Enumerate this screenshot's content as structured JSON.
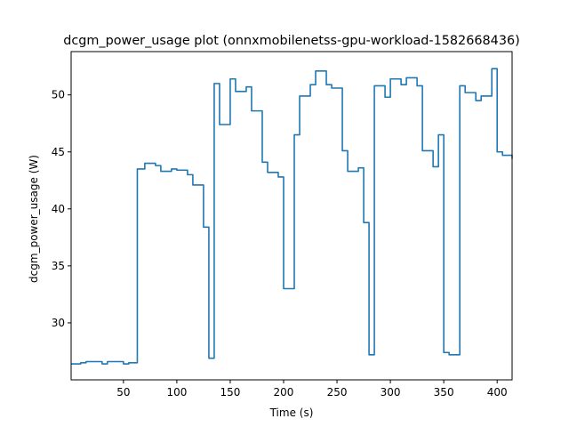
{
  "chart_data": {
    "type": "line",
    "title": "dcgm_power_usage plot (onnxmobilenetss-gpu-workload-1582668436)",
    "xlabel": "Time (s)",
    "ylabel": "dcgm_power_usage (W)",
    "xlim": [
      1,
      414
    ],
    "ylim": [
      25.0,
      53.8
    ],
    "xticks": [
      50,
      100,
      150,
      200,
      250,
      300,
      350,
      400
    ],
    "yticks": [
      30,
      35,
      40,
      45,
      50
    ],
    "grid": false,
    "line_color": "#1f77b4",
    "series": [
      {
        "step": true,
        "x": [
          1,
          5,
          10,
          15,
          20,
          25,
          30,
          35,
          40,
          45,
          50,
          55,
          60,
          63,
          65,
          70,
          75,
          80,
          85,
          90,
          95,
          100,
          105,
          110,
          115,
          120,
          125,
          130,
          133,
          135,
          137,
          140,
          145,
          150,
          155,
          160,
          165,
          170,
          175,
          180,
          185,
          190,
          195,
          200,
          205,
          210,
          215,
          220,
          225,
          230,
          235,
          240,
          245,
          250,
          255,
          260,
          265,
          270,
          275,
          280,
          285,
          290,
          295,
          300,
          305,
          310,
          315,
          320,
          325,
          330,
          335,
          340,
          345,
          350,
          355,
          360,
          365,
          370,
          375,
          380,
          385,
          390,
          395,
          400,
          405,
          414
        ],
        "y": [
          26.4,
          26.4,
          26.5,
          26.6,
          26.6,
          26.6,
          26.4,
          26.6,
          26.6,
          26.6,
          26.4,
          26.5,
          26.5,
          43.5,
          43.5,
          44.0,
          44.0,
          43.8,
          43.3,
          43.3,
          43.5,
          43.4,
          43.4,
          43.0,
          42.1,
          42.1,
          38.4,
          26.9,
          26.9,
          51.0,
          51.0,
          47.4,
          47.4,
          51.4,
          50.3,
          50.3,
          50.7,
          48.6,
          48.6,
          44.1,
          43.2,
          43.2,
          42.8,
          33.0,
          33.0,
          46.5,
          49.9,
          49.9,
          50.9,
          52.1,
          52.1,
          50.9,
          50.6,
          50.6,
          45.1,
          43.3,
          43.3,
          43.6,
          38.8,
          27.2,
          50.8,
          50.8,
          49.8,
          51.4,
          51.4,
          50.9,
          51.5,
          51.5,
          50.8,
          45.1,
          45.1,
          43.7,
          46.5,
          27.4,
          27.2,
          27.2,
          50.8,
          50.2,
          50.2,
          49.5,
          49.9,
          49.9,
          52.3,
          45.0,
          44.7,
          44.4
        ]
      }
    ]
  }
}
